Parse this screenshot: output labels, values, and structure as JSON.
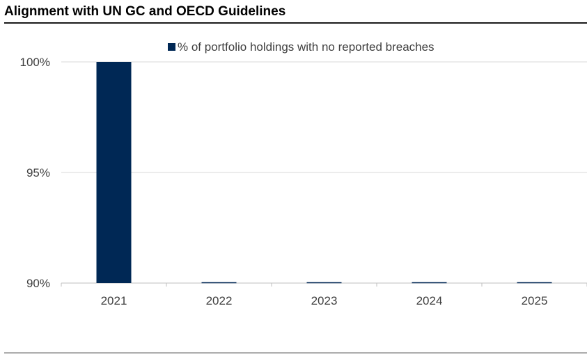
{
  "header": {
    "title": "Alignment with UN GC and OECD Guidelines"
  },
  "chart_data": {
    "type": "bar",
    "title": "Alignment with UN GC and OECD Guidelines",
    "xlabel": "",
    "ylabel": "",
    "categories": [
      "2021",
      "2022",
      "2023",
      "2024",
      "2025"
    ],
    "series": [
      {
        "name": "% of portfolio holdings with no reported breaches",
        "values": [
          100,
          null,
          null,
          null,
          null
        ],
        "color": "#002855"
      }
    ],
    "ylim": [
      90,
      100
    ],
    "yticks": [
      90,
      95,
      100
    ],
    "ytick_labels": [
      "90%",
      "95%",
      "100%"
    ],
    "grid": true,
    "legend": "top-center",
    "colors": {
      "bar": "#002855",
      "grid": "#d9d9d9",
      "axis": "#bfbfbf",
      "text": "#404040"
    }
  }
}
